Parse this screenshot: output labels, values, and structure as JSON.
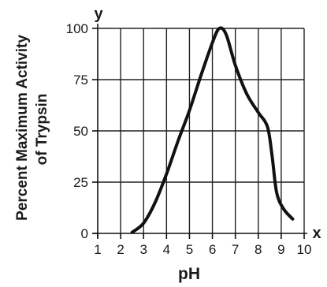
{
  "chart_data": {
    "type": "line",
    "title": "",
    "xlabel": "pH",
    "ylabel_lines": [
      "Percent Maximum Activity",
      "of Trypsin"
    ],
    "x_axis_letter": "x",
    "y_axis_letter": "y",
    "xlim": [
      1,
      10
    ],
    "ylim": [
      0,
      100
    ],
    "x_ticks": [
      1,
      2,
      3,
      4,
      5,
      6,
      7,
      8,
      9,
      10
    ],
    "y_ticks": [
      0,
      25,
      50,
      75,
      100
    ],
    "grid": true,
    "legend": "none",
    "series": [
      {
        "color": "#111111",
        "points": [
          [
            2.5,
            0.5
          ],
          [
            3.0,
            5
          ],
          [
            3.5,
            15
          ],
          [
            4.0,
            29
          ],
          [
            4.5,
            45
          ],
          [
            5.0,
            60
          ],
          [
            5.5,
            77
          ],
          [
            6.0,
            93
          ],
          [
            6.3,
            100
          ],
          [
            6.6,
            97
          ],
          [
            7.0,
            82
          ],
          [
            7.5,
            68
          ],
          [
            8.0,
            59
          ],
          [
            8.4,
            52
          ],
          [
            8.6,
            38
          ],
          [
            8.8,
            20
          ],
          [
            9.1,
            12
          ],
          [
            9.5,
            7
          ]
        ]
      }
    ]
  }
}
